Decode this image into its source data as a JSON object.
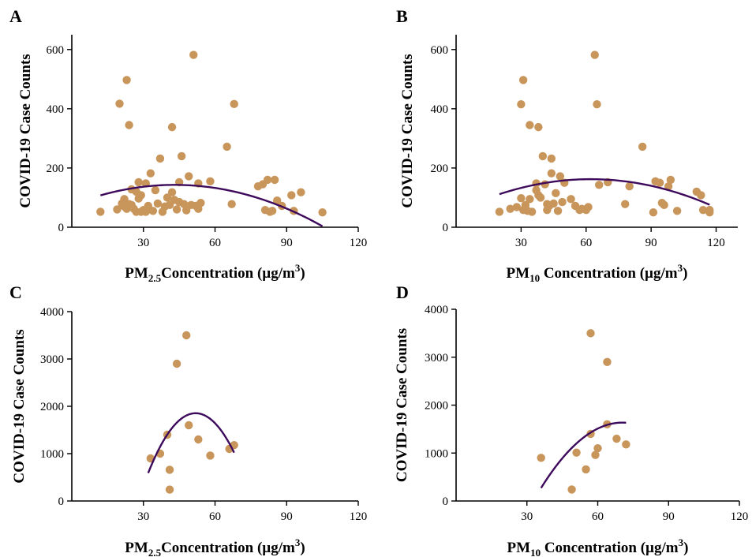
{
  "colors": {
    "point": "#c8955a",
    "curve": "#3d0a5c",
    "axis": "#000000"
  },
  "chart_data": [
    {
      "type": "scatter",
      "panel": "A",
      "xlabel": {
        "main": "PM",
        "sub": "2.5",
        "rest": "Concentration (µg/m",
        "sup": "3",
        "close": ")"
      },
      "ylabel": "COVID-19 Case Counts",
      "xlim": [
        0,
        120
      ],
      "ylim": [
        0,
        650
      ],
      "xticks": [
        30,
        60,
        90,
        120
      ],
      "yticks": [
        0,
        200,
        400,
        600
      ],
      "points": [
        [
          12,
          52
        ],
        [
          19,
          60
        ],
        [
          20,
          417
        ],
        [
          21,
          80
        ],
        [
          22,
          95
        ],
        [
          22,
          70
        ],
        [
          23,
          497
        ],
        [
          23,
          62
        ],
        [
          24,
          345
        ],
        [
          24,
          78
        ],
        [
          25,
          128
        ],
        [
          25,
          75
        ],
        [
          26,
          62
        ],
        [
          27,
          52
        ],
        [
          27,
          120
        ],
        [
          28,
          97
        ],
        [
          28,
          152
        ],
        [
          29,
          52
        ],
        [
          29,
          108
        ],
        [
          30,
          58
        ],
        [
          31,
          148
        ],
        [
          31,
          52
        ],
        [
          32,
          72
        ],
        [
          33,
          182
        ],
        [
          34,
          55
        ],
        [
          35,
          125
        ],
        [
          36,
          80
        ],
        [
          37,
          232
        ],
        [
          38,
          52
        ],
        [
          39,
          70
        ],
        [
          40,
          100
        ],
        [
          41,
          75
        ],
        [
          42,
          338
        ],
        [
          42,
          118
        ],
        [
          43,
          92
        ],
        [
          44,
          60
        ],
        [
          45,
          85
        ],
        [
          45,
          152
        ],
        [
          46,
          240
        ],
        [
          47,
          78
        ],
        [
          48,
          57
        ],
        [
          49,
          172
        ],
        [
          50,
          75
        ],
        [
          51,
          582
        ],
        [
          52,
          72
        ],
        [
          53,
          62
        ],
        [
          53,
          148
        ],
        [
          54,
          82
        ],
        [
          58,
          155
        ],
        [
          65,
          272
        ],
        [
          67,
          78
        ],
        [
          68,
          416
        ],
        [
          78,
          138
        ],
        [
          80,
          145
        ],
        [
          81,
          58
        ],
        [
          82,
          160
        ],
        [
          83,
          52
        ],
        [
          84,
          55
        ],
        [
          85,
          160
        ],
        [
          86,
          90
        ],
        [
          88,
          72
        ],
        [
          92,
          108
        ],
        [
          93,
          55
        ],
        [
          96,
          118
        ],
        [
          105,
          50
        ]
      ],
      "fit": {
        "a": -0.0365,
        "b": 3.15,
        "c": 75,
        "x_range": [
          12,
          105
        ]
      }
    },
    {
      "type": "scatter",
      "panel": "B",
      "xlabel": {
        "main": "PM",
        "sub": "10",
        "rest": " Concentration (µg/m",
        "sup": "3",
        "close": ")"
      },
      "ylabel": "COVID-19 Case Counts",
      "xlim": [
        0,
        130
      ],
      "ylim": [
        0,
        650
      ],
      "xticks": [
        30,
        60,
        90,
        120
      ],
      "yticks": [
        0,
        200,
        400,
        600
      ],
      "points": [
        [
          20,
          52
        ],
        [
          25,
          62
        ],
        [
          28,
          68
        ],
        [
          30,
          98
        ],
        [
          30,
          415
        ],
        [
          31,
          497
        ],
        [
          31,
          58
        ],
        [
          32,
          75
        ],
        [
          33,
          55
        ],
        [
          34,
          345
        ],
        [
          34,
          95
        ],
        [
          35,
          52
        ],
        [
          37,
          148
        ],
        [
          37,
          125
        ],
        [
          38,
          108
        ],
        [
          38,
          338
        ],
        [
          39,
          100
        ],
        [
          40,
          240
        ],
        [
          41,
          145
        ],
        [
          42,
          58
        ],
        [
          42,
          78
        ],
        [
          43,
          72
        ],
        [
          44,
          182
        ],
        [
          44,
          232
        ],
        [
          45,
          80
        ],
        [
          46,
          115
        ],
        [
          47,
          55
        ],
        [
          48,
          172
        ],
        [
          49,
          85
        ],
        [
          50,
          150
        ],
        [
          53,
          95
        ],
        [
          55,
          72
        ],
        [
          57,
          58
        ],
        [
          58,
          62
        ],
        [
          60,
          58
        ],
        [
          61,
          68
        ],
        [
          64,
          582
        ],
        [
          65,
          415
        ],
        [
          66,
          143
        ],
        [
          70,
          152
        ],
        [
          78,
          78
        ],
        [
          80,
          138
        ],
        [
          86,
          272
        ],
        [
          91,
          50
        ],
        [
          92,
          155
        ],
        [
          94,
          150
        ],
        [
          95,
          82
        ],
        [
          96,
          75
        ],
        [
          98,
          138
        ],
        [
          99,
          160
        ],
        [
          102,
          55
        ],
        [
          111,
          120
        ],
        [
          113,
          108
        ],
        [
          114,
          58
        ],
        [
          117,
          50
        ],
        [
          117,
          58
        ]
      ],
      "fit": {
        "a": -0.0286,
        "b": 3.55,
        "c": 52,
        "x_range": [
          20,
          117
        ]
      }
    },
    {
      "type": "scatter",
      "panel": "C",
      "xlabel": {
        "main": "PM",
        "sub": "2.5",
        "rest": "Concentration (µg/m",
        "sup": "3",
        "close": ")"
      },
      "ylabel": "COVID-19 Case Counts",
      "xlim": [
        0,
        120
      ],
      "ylim": [
        0,
        4000
      ],
      "xticks": [
        30,
        60,
        90,
        120
      ],
      "yticks": [
        0,
        1000,
        2000,
        3000,
        4000
      ],
      "points": [
        [
          33,
          900
        ],
        [
          37,
          1000
        ],
        [
          40,
          1400
        ],
        [
          41,
          660
        ],
        [
          41,
          240
        ],
        [
          44,
          2900
        ],
        [
          48,
          3500
        ],
        [
          49,
          1600
        ],
        [
          53,
          1300
        ],
        [
          58,
          960
        ],
        [
          66,
          1100
        ],
        [
          68,
          1180
        ]
      ],
      "fit": {
        "a": -3.2,
        "b": 332,
        "c": -6757,
        "x_range": [
          32,
          68
        ]
      }
    },
    {
      "type": "scatter",
      "panel": "D",
      "xlabel": {
        "main": "PM",
        "sub": "10",
        "rest": " Concentration (µg/m",
        "sup": "3",
        "close": ")"
      },
      "ylabel": "COVID-19 Case Counts",
      "xlim": [
        0,
        120
      ],
      "ylim": [
        0,
        4000
      ],
      "xticks": [
        30,
        60,
        90,
        120
      ],
      "yticks": [
        0,
        1000,
        2000,
        3000,
        4000
      ],
      "points": [
        [
          36,
          900
        ],
        [
          49,
          240
        ],
        [
          51,
          1010
        ],
        [
          55,
          660
        ],
        [
          57,
          1400
        ],
        [
          57,
          3500
        ],
        [
          59,
          960
        ],
        [
          60,
          1100
        ],
        [
          64,
          1600
        ],
        [
          64,
          2900
        ],
        [
          68,
          1300
        ],
        [
          72,
          1180
        ]
      ],
      "fit": {
        "a": -1.15,
        "b": 162,
        "c": -4070,
        "x_range": [
          36,
          72
        ]
      }
    }
  ]
}
